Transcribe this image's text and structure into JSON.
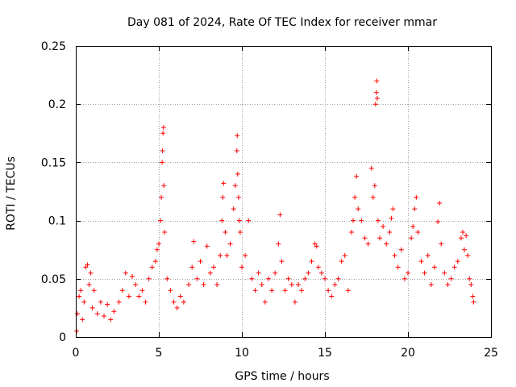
{
  "chart_data": {
    "type": "scatter",
    "title": "Day 081 of 2024, Rate Of TEC Index for receiver mmar",
    "xlabel": "GPS time / hours",
    "ylabel": "ROTI / TECUs",
    "xlim": [
      0,
      25
    ],
    "ylim": [
      0,
      0.25
    ],
    "xticks": [
      0,
      5,
      10,
      15,
      20,
      25
    ],
    "xtick_labels": [
      "0",
      "5",
      "10",
      "15",
      "20",
      "25"
    ],
    "yticks": [
      0,
      0.05,
      0.1,
      0.15,
      0.2,
      0.25
    ],
    "ytick_labels": [
      "0",
      "0.05",
      "0.1",
      "0.15",
      "0.2",
      "0.25"
    ],
    "grid": true,
    "marker": "+",
    "color": "#ff0000",
    "series": [
      {
        "name": "ROTI",
        "points": [
          [
            0.05,
            0.005
          ],
          [
            0.1,
            0.02
          ],
          [
            0.2,
            0.035
          ],
          [
            0.3,
            0.04
          ],
          [
            0.4,
            0.015
          ],
          [
            0.5,
            0.03
          ],
          [
            0.6,
            0.06
          ],
          [
            0.7,
            0.062
          ],
          [
            0.8,
            0.045
          ],
          [
            0.9,
            0.055
          ],
          [
            1.0,
            0.025
          ],
          [
            1.1,
            0.04
          ],
          [
            1.3,
            0.02
          ],
          [
            1.5,
            0.03
          ],
          [
            1.7,
            0.018
          ],
          [
            1.9,
            0.028
          ],
          [
            2.1,
            0.015
          ],
          [
            2.3,
            0.022
          ],
          [
            2.6,
            0.03
          ],
          [
            2.8,
            0.04
          ],
          [
            3.0,
            0.055
          ],
          [
            3.2,
            0.035
          ],
          [
            3.4,
            0.052
          ],
          [
            3.6,
            0.045
          ],
          [
            3.8,
            0.035
          ],
          [
            4.0,
            0.04
          ],
          [
            4.2,
            0.03
          ],
          [
            4.4,
            0.05
          ],
          [
            4.6,
            0.06
          ],
          [
            4.8,
            0.065
          ],
          [
            4.9,
            0.075
          ],
          [
            5.0,
            0.08
          ],
          [
            5.1,
            0.1
          ],
          [
            5.15,
            0.12
          ],
          [
            5.2,
            0.15
          ],
          [
            5.22,
            0.16
          ],
          [
            5.25,
            0.175
          ],
          [
            5.28,
            0.18
          ],
          [
            5.3,
            0.13
          ],
          [
            5.35,
            0.09
          ],
          [
            5.5,
            0.05
          ],
          [
            5.7,
            0.04
          ],
          [
            5.9,
            0.03
          ],
          [
            6.1,
            0.025
          ],
          [
            6.3,
            0.035
          ],
          [
            6.5,
            0.03
          ],
          [
            6.8,
            0.045
          ],
          [
            7.0,
            0.06
          ],
          [
            7.1,
            0.082
          ],
          [
            7.3,
            0.05
          ],
          [
            7.5,
            0.065
          ],
          [
            7.7,
            0.045
          ],
          [
            7.9,
            0.078
          ],
          [
            8.1,
            0.055
          ],
          [
            8.3,
            0.06
          ],
          [
            8.5,
            0.045
          ],
          [
            8.7,
            0.07
          ],
          [
            8.8,
            0.1
          ],
          [
            8.85,
            0.12
          ],
          [
            8.9,
            0.132
          ],
          [
            9.0,
            0.09
          ],
          [
            9.1,
            0.07
          ],
          [
            9.3,
            0.08
          ],
          [
            9.5,
            0.11
          ],
          [
            9.6,
            0.13
          ],
          [
            9.7,
            0.16
          ],
          [
            9.72,
            0.173
          ],
          [
            9.75,
            0.14
          ],
          [
            9.8,
            0.12
          ],
          [
            9.85,
            0.1
          ],
          [
            9.9,
            0.09
          ],
          [
            10.0,
            0.06
          ],
          [
            10.2,
            0.07
          ],
          [
            10.4,
            0.1
          ],
          [
            10.6,
            0.05
          ],
          [
            10.8,
            0.04
          ],
          [
            11.0,
            0.055
          ],
          [
            11.2,
            0.045
          ],
          [
            11.4,
            0.03
          ],
          [
            11.6,
            0.05
          ],
          [
            11.8,
            0.04
          ],
          [
            12.0,
            0.055
          ],
          [
            12.2,
            0.08
          ],
          [
            12.3,
            0.105
          ],
          [
            12.4,
            0.065
          ],
          [
            12.6,
            0.04
          ],
          [
            12.8,
            0.05
          ],
          [
            13.0,
            0.045
          ],
          [
            13.2,
            0.03
          ],
          [
            13.4,
            0.045
          ],
          [
            13.6,
            0.04
          ],
          [
            13.8,
            0.05
          ],
          [
            14.0,
            0.055
          ],
          [
            14.2,
            0.065
          ],
          [
            14.4,
            0.08
          ],
          [
            14.5,
            0.078
          ],
          [
            14.6,
            0.06
          ],
          [
            14.8,
            0.055
          ],
          [
            15.0,
            0.05
          ],
          [
            15.2,
            0.04
          ],
          [
            15.4,
            0.035
          ],
          [
            15.6,
            0.045
          ],
          [
            15.8,
            0.05
          ],
          [
            16.0,
            0.065
          ],
          [
            16.2,
            0.07
          ],
          [
            16.4,
            0.04
          ],
          [
            16.6,
            0.09
          ],
          [
            16.7,
            0.1
          ],
          [
            16.8,
            0.12
          ],
          [
            16.9,
            0.138
          ],
          [
            17.0,
            0.11
          ],
          [
            17.2,
            0.1
          ],
          [
            17.4,
            0.085
          ],
          [
            17.6,
            0.08
          ],
          [
            17.8,
            0.145
          ],
          [
            17.9,
            0.12
          ],
          [
            18.0,
            0.13
          ],
          [
            18.05,
            0.2
          ],
          [
            18.1,
            0.21
          ],
          [
            18.12,
            0.22
          ],
          [
            18.15,
            0.205
          ],
          [
            18.2,
            0.1
          ],
          [
            18.3,
            0.085
          ],
          [
            18.5,
            0.095
          ],
          [
            18.7,
            0.08
          ],
          [
            18.9,
            0.09
          ],
          [
            19.0,
            0.102
          ],
          [
            19.1,
            0.11
          ],
          [
            19.2,
            0.07
          ],
          [
            19.4,
            0.06
          ],
          [
            19.6,
            0.075
          ],
          [
            19.8,
            0.05
          ],
          [
            20.0,
            0.055
          ],
          [
            20.2,
            0.085
          ],
          [
            20.3,
            0.095
          ],
          [
            20.4,
            0.11
          ],
          [
            20.5,
            0.12
          ],
          [
            20.6,
            0.09
          ],
          [
            20.8,
            0.065
          ],
          [
            21.0,
            0.055
          ],
          [
            21.2,
            0.07
          ],
          [
            21.4,
            0.045
          ],
          [
            21.6,
            0.06
          ],
          [
            21.8,
            0.099
          ],
          [
            21.9,
            0.115
          ],
          [
            22.0,
            0.08
          ],
          [
            22.2,
            0.055
          ],
          [
            22.4,
            0.045
          ],
          [
            22.6,
            0.05
          ],
          [
            22.8,
            0.06
          ],
          [
            23.0,
            0.065
          ],
          [
            23.2,
            0.085
          ],
          [
            23.3,
            0.09
          ],
          [
            23.4,
            0.075
          ],
          [
            23.5,
            0.087
          ],
          [
            23.6,
            0.07
          ],
          [
            23.7,
            0.05
          ],
          [
            23.8,
            0.045
          ],
          [
            23.9,
            0.035
          ],
          [
            23.95,
            0.03
          ]
        ]
      }
    ]
  }
}
